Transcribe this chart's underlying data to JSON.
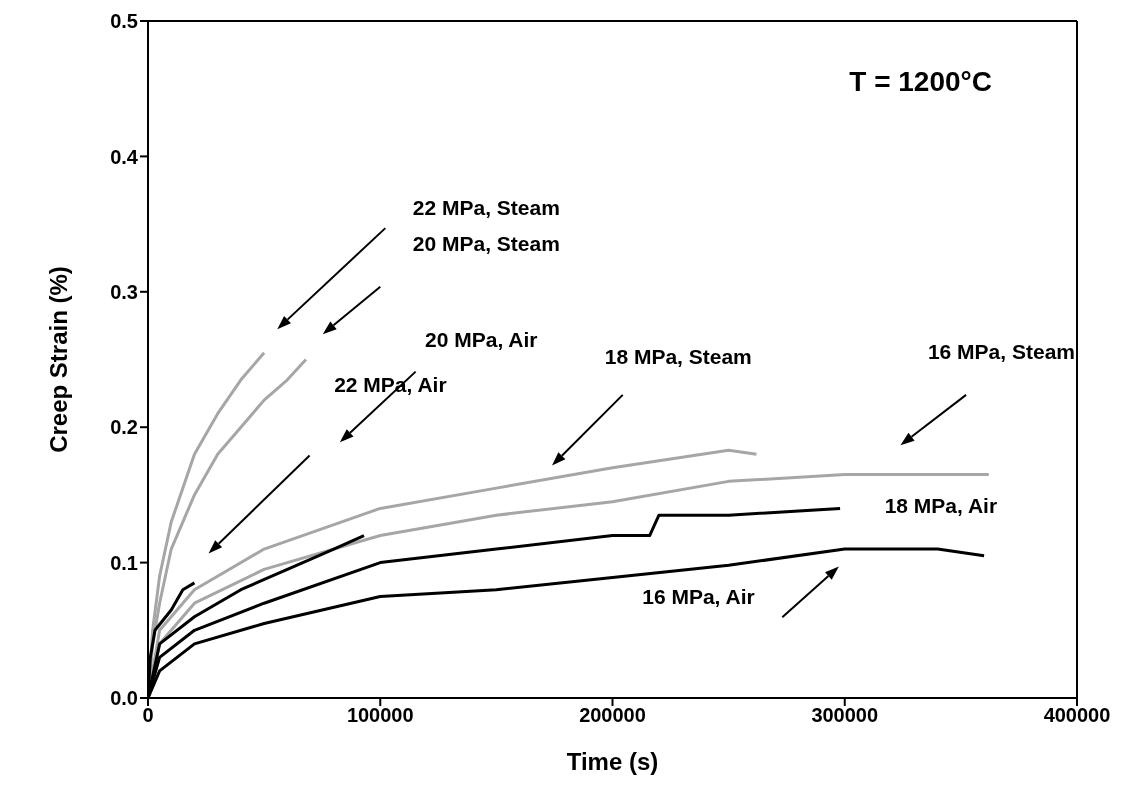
{
  "chart_data": {
    "type": "line",
    "xlabel": "Time (s)",
    "ylabel": "Creep Strain (%)",
    "xlim": [
      0,
      400000
    ],
    "xticks": [
      0,
      100000,
      200000,
      300000,
      400000
    ],
    "ylim": [
      0,
      0.5
    ],
    "yticks": [
      {
        "value": 0,
        "label": "0.0"
      },
      {
        "value": 0.1,
        "label": "0.1"
      },
      {
        "value": 0.2,
        "label": "0.2"
      },
      {
        "value": 0.3,
        "label": "0.3"
      },
      {
        "value": 0.4,
        "label": "0.4"
      },
      {
        "value": 0.5,
        "label": "0.5"
      }
    ],
    "series": [
      {
        "color": "#a6a6a6",
        "x": [
          0,
          2000,
          5000,
          10000,
          20000,
          30000,
          40000,
          50000
        ],
        "values": [
          0,
          0.05,
          0.09,
          0.13,
          0.18,
          0.21,
          0.235,
          0.255
        ]
      },
      {
        "color": "#a6a6a6",
        "x": [
          0,
          2000,
          5000,
          10000,
          20000,
          30000,
          40000,
          50000,
          60000,
          68000
        ],
        "values": [
          0,
          0.04,
          0.07,
          0.11,
          0.15,
          0.18,
          0.2,
          0.22,
          0.235,
          0.25
        ]
      },
      {
        "color": "#a6a6a6",
        "x": [
          0,
          5000,
          20000,
          50000,
          100000,
          150000,
          200000,
          250000,
          262000
        ],
        "values": [
          0,
          0.05,
          0.08,
          0.11,
          0.14,
          0.155,
          0.17,
          0.183,
          0.18
        ]
      },
      {
        "color": "#a6a6a6",
        "x": [
          0,
          5000,
          20000,
          50000,
          100000,
          150000,
          200000,
          250000,
          300000,
          362000
        ],
        "values": [
          0,
          0.04,
          0.07,
          0.095,
          0.12,
          0.135,
          0.145,
          0.16,
          0.165,
          0.165
        ]
      },
      {
        "color": "#000000",
        "x": [
          0,
          1000,
          3000,
          10000,
          15000,
          20000
        ],
        "values": [
          0,
          0.03,
          0.05,
          0.065,
          0.08,
          0.085
        ]
      },
      {
        "color": "#000000",
        "x": [
          0,
          5000,
          20000,
          40000,
          60000,
          80000,
          93000
        ],
        "values": [
          0,
          0.04,
          0.06,
          0.08,
          0.095,
          0.11,
          0.12
        ]
      },
      {
        "color": "#000000",
        "x": [
          0,
          5000,
          20000,
          50000,
          100000,
          150000,
          200000,
          216000,
          220000,
          250000,
          298000
        ],
        "values": [
          0,
          0.03,
          0.05,
          0.07,
          0.1,
          0.11,
          0.12,
          0.12,
          0.135,
          0.135,
          0.14
        ]
      },
      {
        "color": "#000000",
        "x": [
          0,
          5000,
          20000,
          50000,
          100000,
          150000,
          200000,
          250000,
          300000,
          340000,
          360000
        ],
        "values": [
          0,
          0.02,
          0.04,
          0.055,
          0.075,
          0.08,
          0.089,
          0.098,
          0.11,
          0.11,
          0.105
        ]
      }
    ],
    "annotations": [
      "T = 1200°C",
      "22 MPa, Steam",
      "20 MPa, Steam",
      "20 MPa, Air",
      "22 MPa, Air",
      "18 MPa, Steam",
      "16 MPa, Steam",
      "18 MPa, Air",
      "16 MPa, Air"
    ]
  }
}
